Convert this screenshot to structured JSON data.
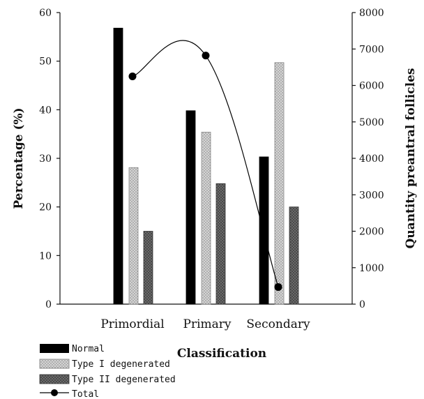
{
  "chart_data": {
    "type": "bar",
    "title": "",
    "xlabel": "Classification",
    "ylabel": "Percentage (%)",
    "y2label": "Quantity preantral follicles",
    "categories": [
      "Primordial",
      "Primary",
      "Secondary"
    ],
    "ylim": [
      0,
      60
    ],
    "y_ticks": [
      0,
      10,
      20,
      30,
      40,
      50,
      60
    ],
    "y2lim": [
      0,
      8000
    ],
    "y2_ticks": [
      0,
      1000,
      2000,
      3000,
      4000,
      5000,
      6000,
      7000,
      8000
    ],
    "series": [
      {
        "name": "Normal",
        "kind": "bar",
        "axis": "left",
        "values": [
          56.8,
          39.8,
          30.3
        ]
      },
      {
        "name": "Type I degenerated",
        "kind": "bar",
        "axis": "left",
        "values": [
          28.1,
          35.4,
          49.7
        ]
      },
      {
        "name": "Type II degenerated",
        "kind": "bar",
        "axis": "left",
        "values": [
          15.0,
          24.8,
          20.0
        ]
      },
      {
        "name": "Total",
        "kind": "line",
        "axis": "right",
        "values": [
          6250,
          6820,
          470
        ]
      }
    ],
    "legend_position": "bottom-left",
    "grid": false
  },
  "colors": {
    "normal": "#000000",
    "type1": "#c8c8c8",
    "type2": "#555555",
    "line": "#000000"
  }
}
